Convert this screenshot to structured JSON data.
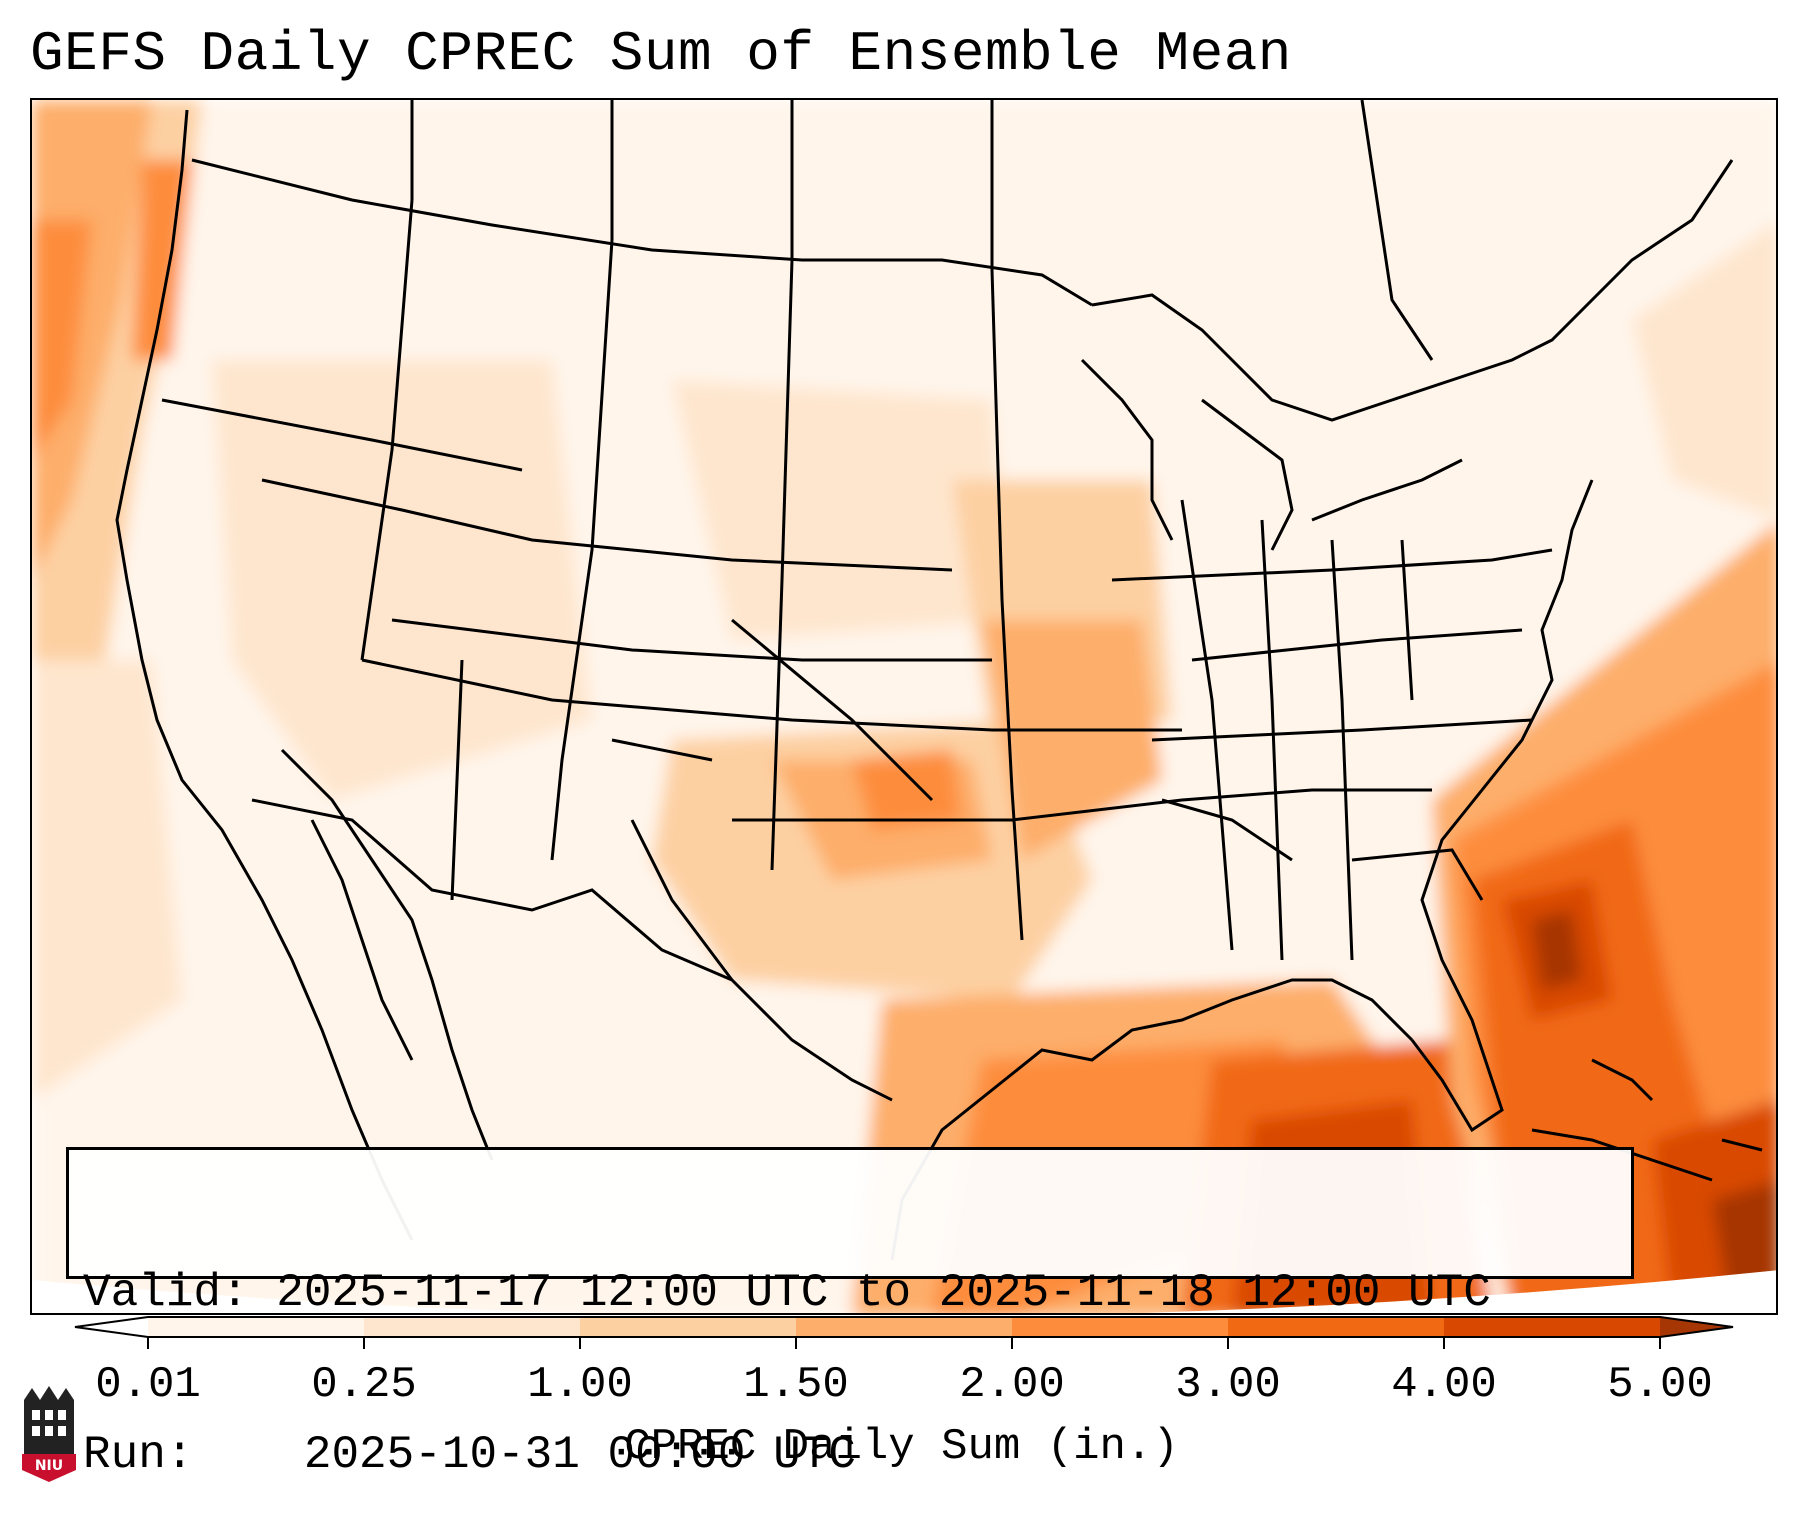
{
  "title": "GEFS Daily CPREC Sum of Ensemble Mean",
  "info": {
    "valid_label": "Valid:",
    "valid_value": "2025-11-17 12:00 UTC to 2025-11-18 12:00 UTC",
    "run_label": "Run:",
    "run_value": "2025-10-31 00:00 UTC"
  },
  "colorbar": {
    "label": "CPREC Daily Sum (in.)",
    "ticks": [
      "0.01",
      "0.25",
      "1.00",
      "1.50",
      "2.00",
      "3.00",
      "4.00",
      "5.00"
    ],
    "colors": [
      "#fff5eb",
      "#fee6ce",
      "#fdd0a2",
      "#fdae6b",
      "#fd8d3c",
      "#f16913",
      "#d94801",
      "#a63603"
    ],
    "extend": "both"
  },
  "logo": {
    "text": "NIU",
    "color": "#c8102e"
  },
  "map": {
    "projection": "Lambert conformal (CONUS)",
    "domain": "United States, southern Canada, northern Mexico, Gulf of Mexico, western Atlantic",
    "heaviest_area": "Atlantic off southeast US coast and Caribbean"
  }
}
